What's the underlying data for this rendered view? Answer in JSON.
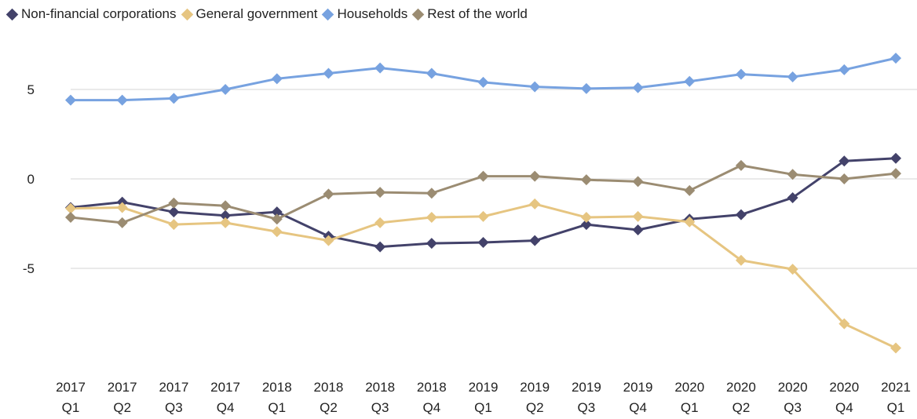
{
  "chart_data": {
    "type": "line",
    "title": "",
    "xlabel": "",
    "ylabel": "",
    "ylim": [
      -9.5,
      7
    ],
    "yticks": [
      5,
      0,
      -5
    ],
    "ytick_labels": [
      "5",
      "0",
      "-5"
    ],
    "legend_position": "top-left",
    "grid": "horizontal",
    "categories": [
      {
        "year": "2017",
        "quarter": "Q1"
      },
      {
        "year": "2017",
        "quarter": "Q2"
      },
      {
        "year": "2017",
        "quarter": "Q3"
      },
      {
        "year": "2017",
        "quarter": "Q4"
      },
      {
        "year": "2018",
        "quarter": "Q1"
      },
      {
        "year": "2018",
        "quarter": "Q2"
      },
      {
        "year": "2018",
        "quarter": "Q3"
      },
      {
        "year": "2018",
        "quarter": "Q4"
      },
      {
        "year": "2019",
        "quarter": "Q1"
      },
      {
        "year": "2019",
        "quarter": "Q2"
      },
      {
        "year": "2019",
        "quarter": "Q3"
      },
      {
        "year": "2019",
        "quarter": "Q4"
      },
      {
        "year": "2020",
        "quarter": "Q1"
      },
      {
        "year": "2020",
        "quarter": "Q2"
      },
      {
        "year": "2020",
        "quarter": "Q3"
      },
      {
        "year": "2020",
        "quarter": "Q4"
      },
      {
        "year": "2021",
        "quarter": "Q1"
      }
    ],
    "series": [
      {
        "name": "Non-financial corporations",
        "color": "#43426a",
        "values": [
          -1.6,
          -1.3,
          -1.85,
          -2.05,
          -1.85,
          -3.2,
          -3.8,
          -3.6,
          -3.55,
          -3.45,
          -2.55,
          -2.85,
          -2.25,
          -2.0,
          -1.05,
          1.0,
          1.15
        ]
      },
      {
        "name": "General government",
        "color": "#e6c581",
        "values": [
          -1.65,
          -1.6,
          -2.55,
          -2.45,
          -2.95,
          -3.45,
          -2.45,
          -2.15,
          -2.1,
          -1.4,
          -2.15,
          -2.1,
          -2.4,
          -4.55,
          -5.05,
          -8.1,
          -9.45
        ]
      },
      {
        "name": "Households",
        "color": "#77a2e0",
        "values": [
          4.4,
          4.4,
          4.5,
          5.0,
          5.6,
          5.9,
          6.2,
          5.9,
          5.4,
          5.15,
          5.05,
          5.1,
          5.45,
          5.85,
          5.7,
          6.1,
          6.75
        ]
      },
      {
        "name": "Rest of the world",
        "color": "#9b8c72",
        "values": [
          -2.15,
          -2.45,
          -1.35,
          -1.5,
          -2.25,
          -0.85,
          -0.75,
          -0.8,
          0.15,
          0.15,
          -0.05,
          -0.15,
          -0.65,
          0.75,
          0.25,
          0.0,
          0.3
        ]
      }
    ]
  }
}
